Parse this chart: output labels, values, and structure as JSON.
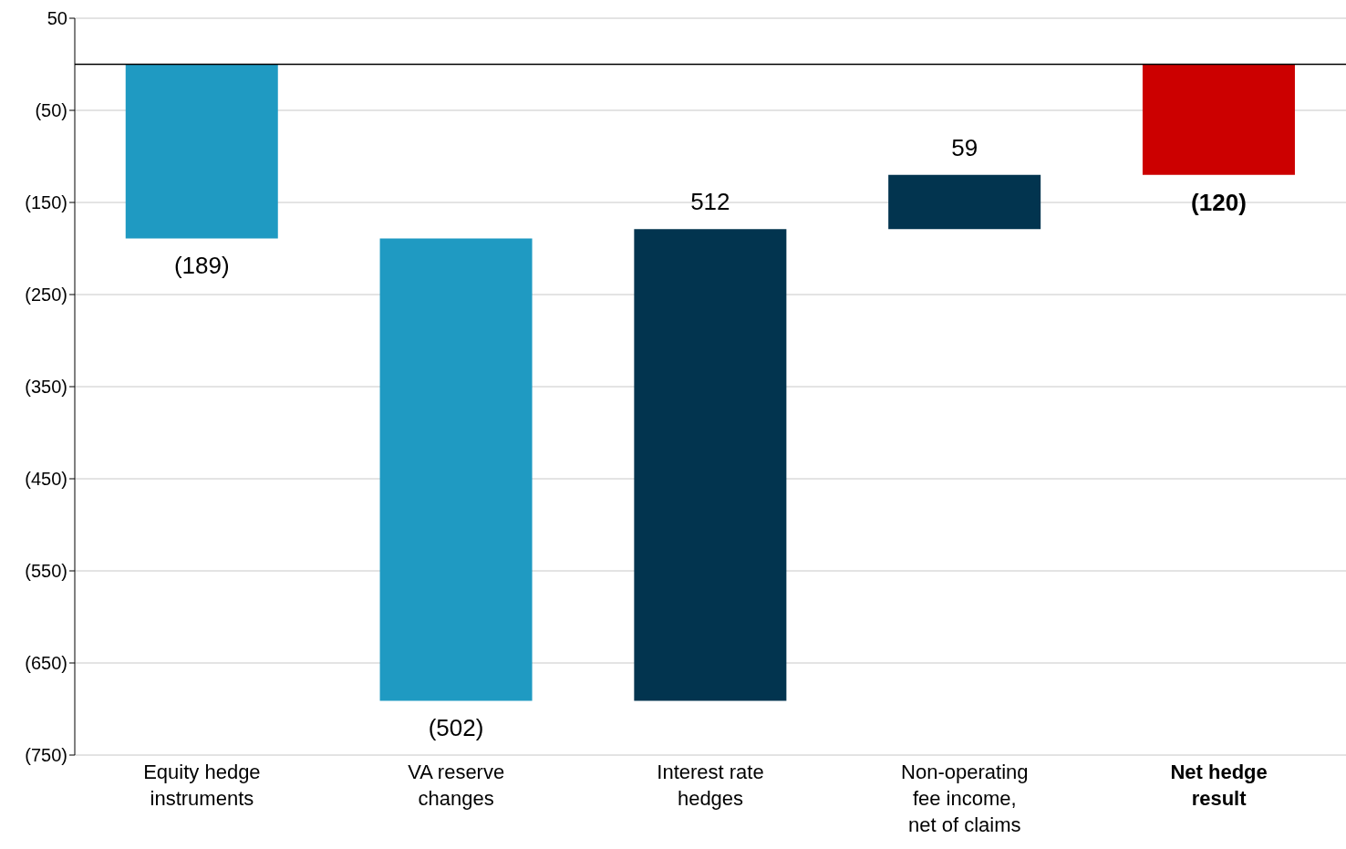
{
  "chart_data": {
    "type": "bar",
    "categories": [
      "Equity hedge\ninstruments",
      "VA reserve\nchanges",
      "Interest rate\nhedges",
      "Non-operating\nfee income,\nnet of claims",
      "Net hedge\nresult"
    ],
    "values": [
      -189,
      -502,
      512,
      59,
      -120
    ],
    "base": [
      0,
      -189,
      -691,
      -179,
      0
    ],
    "colors": [
      "#1f9ac2",
      "#1f9ac2",
      "#02344f",
      "#02344f",
      "#cc0000"
    ],
    "value_labels": [
      "(189)",
      "(502)",
      "512",
      "59",
      "(120)"
    ],
    "ylim": [
      -750,
      50
    ],
    "yticks": [
      {
        "value": 50,
        "label": "50"
      },
      {
        "value": -50,
        "label": "(50)"
      },
      {
        "value": -150,
        "label": "(150)"
      },
      {
        "value": -250,
        "label": "(250)"
      },
      {
        "value": -350,
        "label": "(350)"
      },
      {
        "value": -450,
        "label": "(450)"
      },
      {
        "value": -550,
        "label": "(550)"
      },
      {
        "value": -650,
        "label": "(650)"
      },
      {
        "value": -750,
        "label": "(750)"
      }
    ],
    "ref_lines": [
      {
        "axis": "y",
        "value": 0,
        "color": "#000000"
      }
    ],
    "grid": "y"
  }
}
